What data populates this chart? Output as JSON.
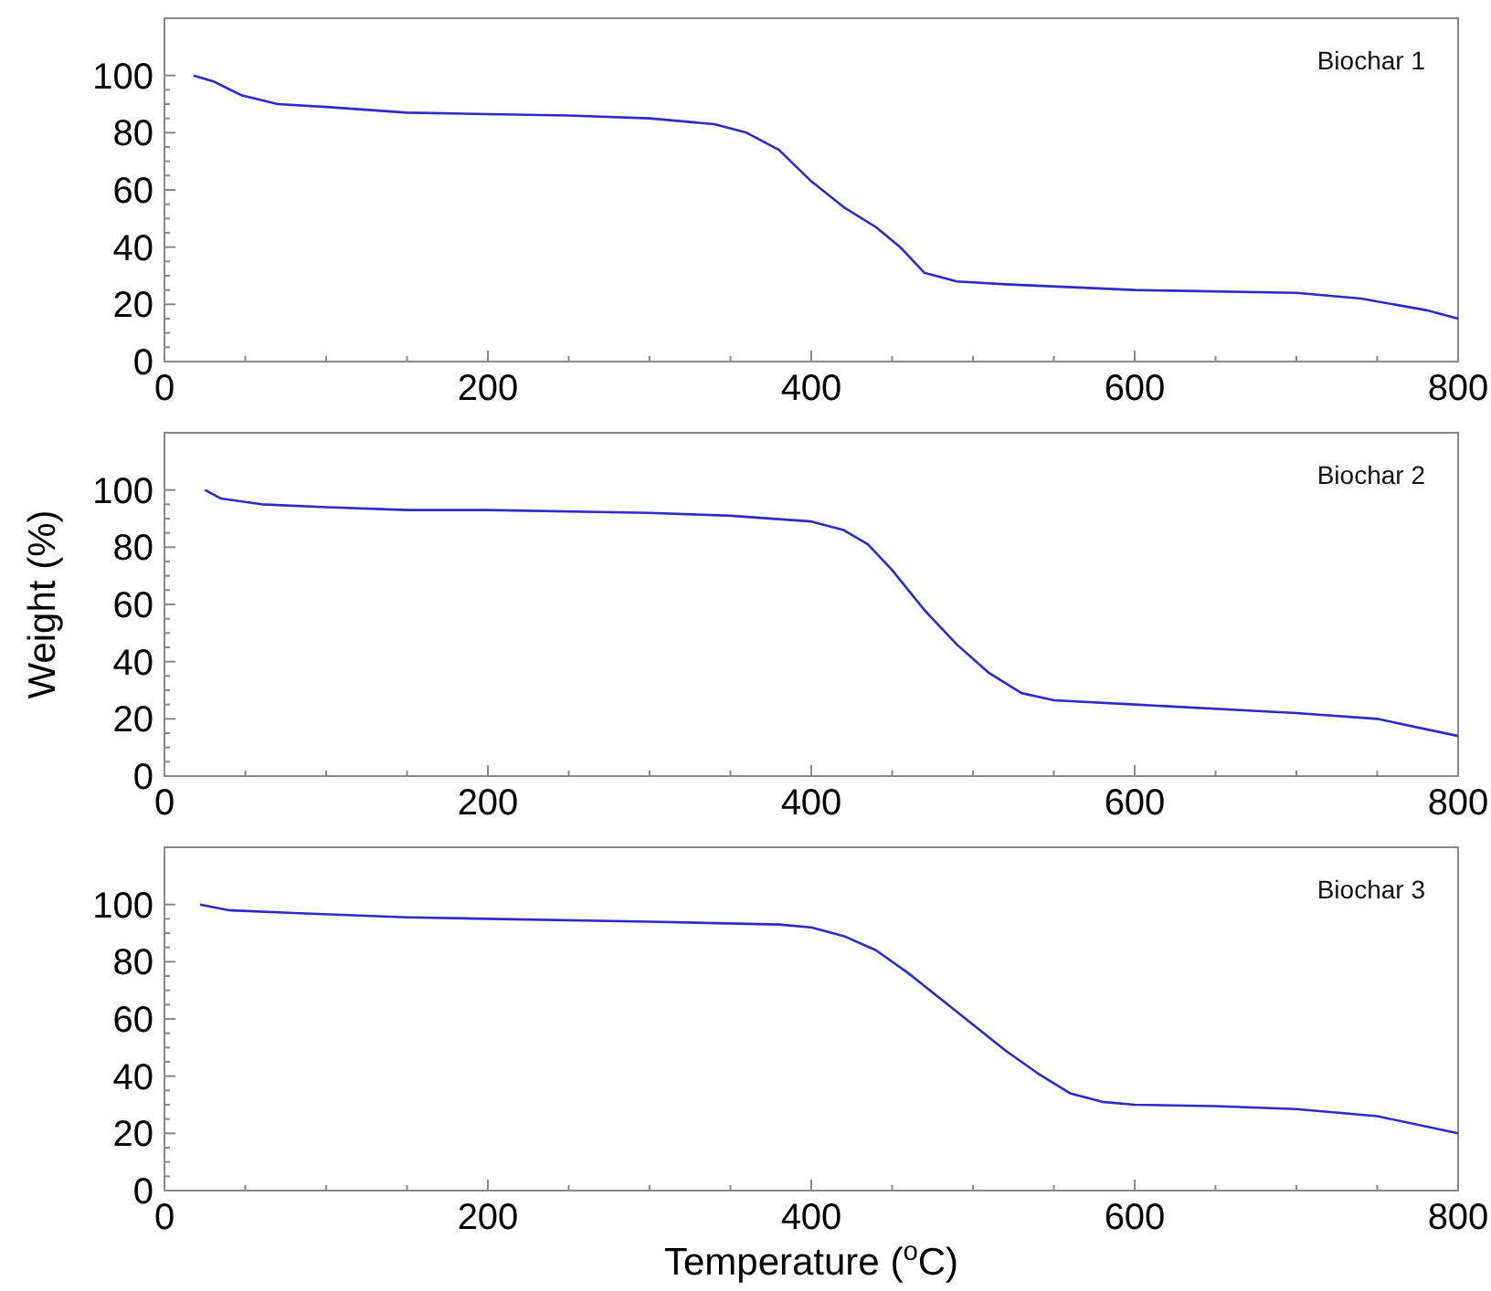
{
  "chart_data": [
    {
      "type": "line",
      "xlim": [
        0,
        800
      ],
      "xticks": [
        0,
        200,
        400,
        600,
        800
      ],
      "ylim": [
        0,
        120
      ],
      "yticks": [
        0,
        20,
        40,
        60,
        80,
        100
      ],
      "legend": "top right",
      "series": [
        {
          "name": "Biochar 1",
          "color": "#2b2bc8",
          "x": [
            18,
            30,
            48,
            70,
            100,
            150,
            200,
            250,
            300,
            340,
            360,
            380,
            400,
            420,
            440,
            455,
            470,
            490,
            520,
            600,
            700,
            740,
            780,
            800
          ],
          "values": [
            100,
            98,
            93,
            90,
            89,
            87,
            86.5,
            86,
            85,
            83,
            80,
            74,
            63,
            54,
            47,
            40,
            31,
            28,
            27,
            25,
            24,
            22,
            18,
            15
          ]
        }
      ]
    },
    {
      "type": "line",
      "ylabel": "Weight (%)",
      "xlim": [
        0,
        800
      ],
      "xticks": [
        0,
        200,
        400,
        600,
        800
      ],
      "ylim": [
        0,
        120
      ],
      "yticks": [
        0,
        20,
        40,
        60,
        80,
        100
      ],
      "legend": "top right",
      "series": [
        {
          "name": "Biochar 2",
          "color": "#2b2bc8",
          "x": [
            25,
            35,
            60,
            100,
            150,
            200,
            300,
            350,
            400,
            420,
            435,
            450,
            470,
            490,
            510,
            530,
            550,
            600,
            700,
            750,
            800
          ],
          "values": [
            100,
            97,
            95,
            94,
            93,
            93,
            92,
            91,
            89,
            86,
            81,
            72,
            58,
            46,
            36,
            29,
            26.5,
            25,
            22,
            20,
            14
          ]
        }
      ]
    },
    {
      "type": "line",
      "xlabel": "Temperature ($^{o}$C)",
      "xlim": [
        0,
        800
      ],
      "xticks": [
        0,
        200,
        400,
        600,
        800
      ],
      "ylim": [
        0,
        120
      ],
      "yticks": [
        0,
        20,
        40,
        60,
        80,
        100
      ],
      "legend": "top right",
      "series": [
        {
          "name": "Biochar 3",
          "color": "#2b2bc8",
          "x": [
            22,
            40,
            80,
            150,
            200,
            300,
            380,
            400,
            420,
            440,
            460,
            480,
            500,
            520,
            540,
            560,
            580,
            600,
            650,
            700,
            750,
            800
          ],
          "values": [
            100,
            98,
            97,
            95.5,
            95,
            94,
            93,
            92,
            89,
            84,
            76,
            67,
            58,
            49,
            41,
            34,
            31,
            30,
            29.5,
            28.5,
            26,
            20
          ]
        }
      ]
    }
  ]
}
